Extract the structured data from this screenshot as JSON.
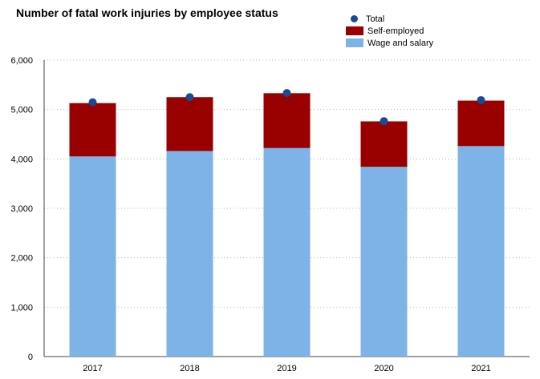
{
  "chart_data": {
    "type": "bar",
    "title": "Number of fatal work injuries by employee status",
    "categories": [
      "2017",
      "2018",
      "2019",
      "2020",
      "2021"
    ],
    "series": [
      {
        "name": "Wage and salary",
        "values": [
          4050,
          4160,
          4220,
          3840,
          4260
        ],
        "color": "#7eb3e8"
      },
      {
        "name": "Self-employed",
        "values": [
          1080,
          1090,
          1110,
          920,
          920
        ],
        "color": "#990000"
      },
      {
        "name": "Total",
        "values": [
          5147,
          5250,
          5333,
          4764,
          5190
        ],
        "color": "#174a97"
      }
    ],
    "y_ticks": [
      "0",
      "1,000",
      "2,000",
      "3,000",
      "4,000",
      "5,000",
      "6,000"
    ],
    "ylim": [
      0,
      6000
    ],
    "stacked": true,
    "grid": "horizontal-dotted",
    "legend_position": "top-right"
  }
}
